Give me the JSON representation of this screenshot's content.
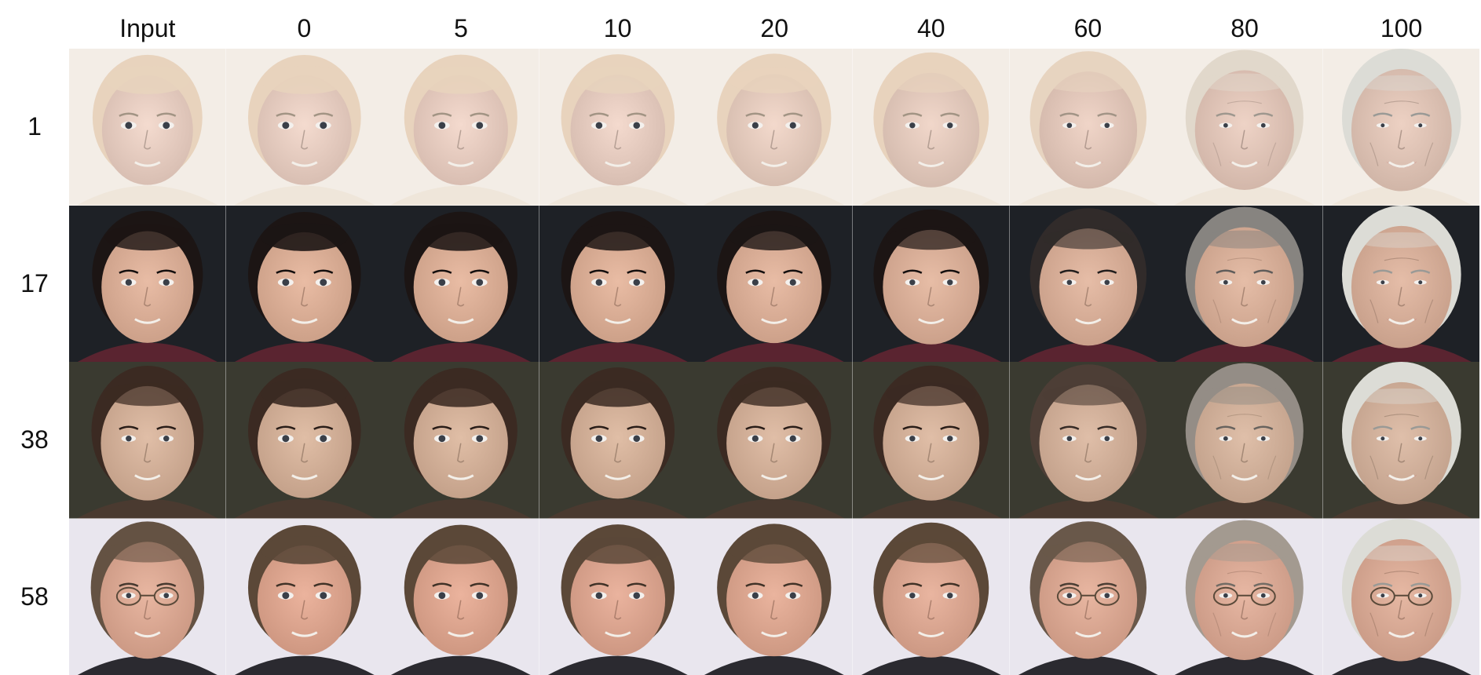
{
  "figure": {
    "column_headers": [
      "Input",
      "0",
      "5",
      "10",
      "20",
      "40",
      "60",
      "80",
      "100"
    ],
    "rows": [
      {
        "label": "1",
        "palette": {
          "bg": "#f3ede6",
          "skin": "#f3d6c8",
          "hair": "#e8d3bd",
          "cloth": "#efe6da"
        }
      },
      {
        "label": "17",
        "palette": {
          "bg": "#1e2126",
          "skin": "#e6b398",
          "hair": "#1c1514",
          "cloth": "#5a2430"
        }
      },
      {
        "label": "38",
        "palette": {
          "bg": "#3a3a30",
          "skin": "#dcb59a",
          "hair": "#3b2a22",
          "cloth": "#4a3a30"
        }
      },
      {
        "label": "58",
        "palette": {
          "bg": "#e9e6ee",
          "skin": "#e8a990",
          "hair": "#5b4838",
          "cloth": "#2b2a30"
        }
      }
    ],
    "description": "Face aging grid: 4 subjects (rows) shown as input and synthesized at target ages 0–100 (columns)."
  }
}
